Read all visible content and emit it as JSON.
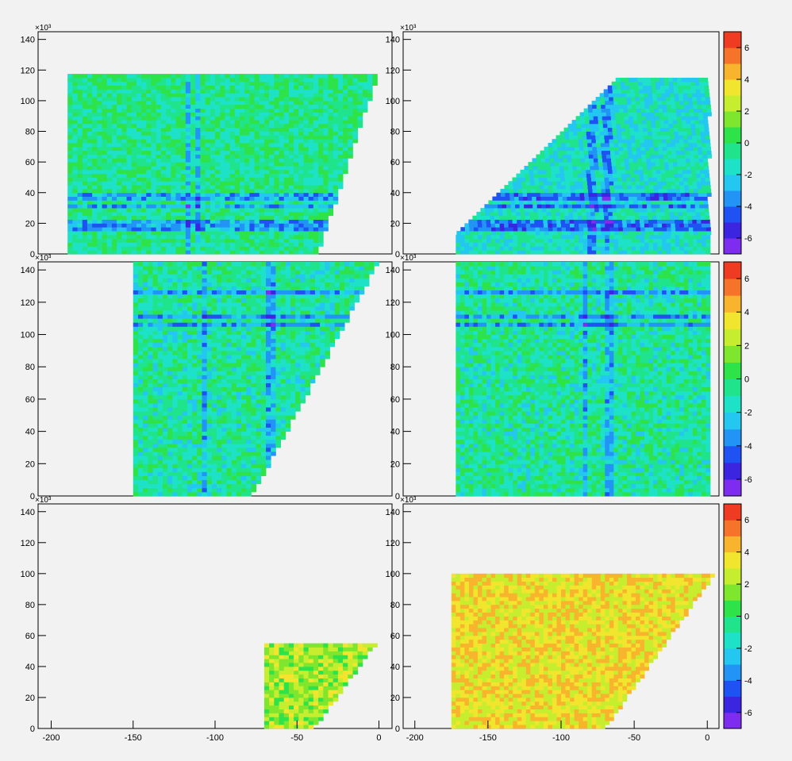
{
  "chart_data": {
    "type": "heatmap",
    "layout": "3 rows x 2 columns of 2D histogram pads with shared color palettes",
    "y_axis": {
      "ticks": [
        0,
        20,
        40,
        60,
        80,
        100,
        120,
        140
      ],
      "exponent_label": "×10³",
      "ylim": [
        0,
        145
      ]
    },
    "x_axis": {
      "ticks": [
        -200,
        -150,
        -100,
        -50,
        0
      ],
      "xlim": [
        -208,
        8
      ]
    },
    "color_scale": {
      "ticks": [
        -6,
        -4,
        -2,
        0,
        2,
        4,
        6
      ],
      "zlim": [
        -7,
        7
      ],
      "palette": "ROOT rainbow (purple→blue→cyan→green→yellow→orange→red)"
    },
    "panels": [
      {
        "id": "row1-left",
        "x_range": [
          -190,
          -2
        ],
        "y_bottom": 0,
        "y_top": 116,
        "edge_x0": -38,
        "edge_x1": -2,
        "edge_y0": 0,
        "edge_y1": 116,
        "mean_z": -0.5,
        "blue_rows": [
          16,
          20,
          30,
          36
        ],
        "blue_cols": [
          -118,
          -112
        ]
      },
      {
        "id": "row1-right",
        "x_range": [
          -172,
          0
        ],
        "y_bottom": 0,
        "y_top": 115,
        "edge_x0": -172,
        "edge_x1": -60,
        "edge_y0": 12,
        "edge_y1": 115,
        "edge_side": "left",
        "mean_z": -1.5,
        "blue_rows": [
          16,
          20,
          30,
          36
        ],
        "blue_cols": [
          -80,
          -70
        ]
      },
      {
        "id": "row2-left",
        "x_range": [
          -150,
          -2
        ],
        "y_bottom": 0,
        "y_top": 143,
        "edge_x0": -78,
        "edge_x1": -2,
        "edge_y0": 0,
        "edge_y1": 143,
        "mean_z": -0.8,
        "blue_rows": [
          105,
          110,
          125
        ],
        "blue_cols": [
          -108,
          -68
        ]
      },
      {
        "id": "row2-right",
        "x_range": [
          -172,
          0
        ],
        "y_bottom": 0,
        "y_top": 143,
        "mean_z": -0.8,
        "blue_rows": [
          105,
          110,
          125
        ],
        "blue_cols": [
          -85,
          -68
        ]
      },
      {
        "id": "row3-left",
        "x_range": [
          -70,
          -2
        ],
        "y_bottom": 0,
        "y_top": 55,
        "edge_x0": -40,
        "edge_x1": -2,
        "edge_y0": 0,
        "edge_y1": 55,
        "mean_z": 2.0,
        "blue_rows": [],
        "blue_cols": []
      },
      {
        "id": "row3-right",
        "x_range": [
          -175,
          5
        ],
        "y_bottom": 0,
        "y_top": 100,
        "edge_x0": -70,
        "edge_x1": 5,
        "edge_y0": 0,
        "edge_y1": 100,
        "mean_z": 3.5,
        "blue_rows": [],
        "blue_cols": []
      }
    ]
  }
}
